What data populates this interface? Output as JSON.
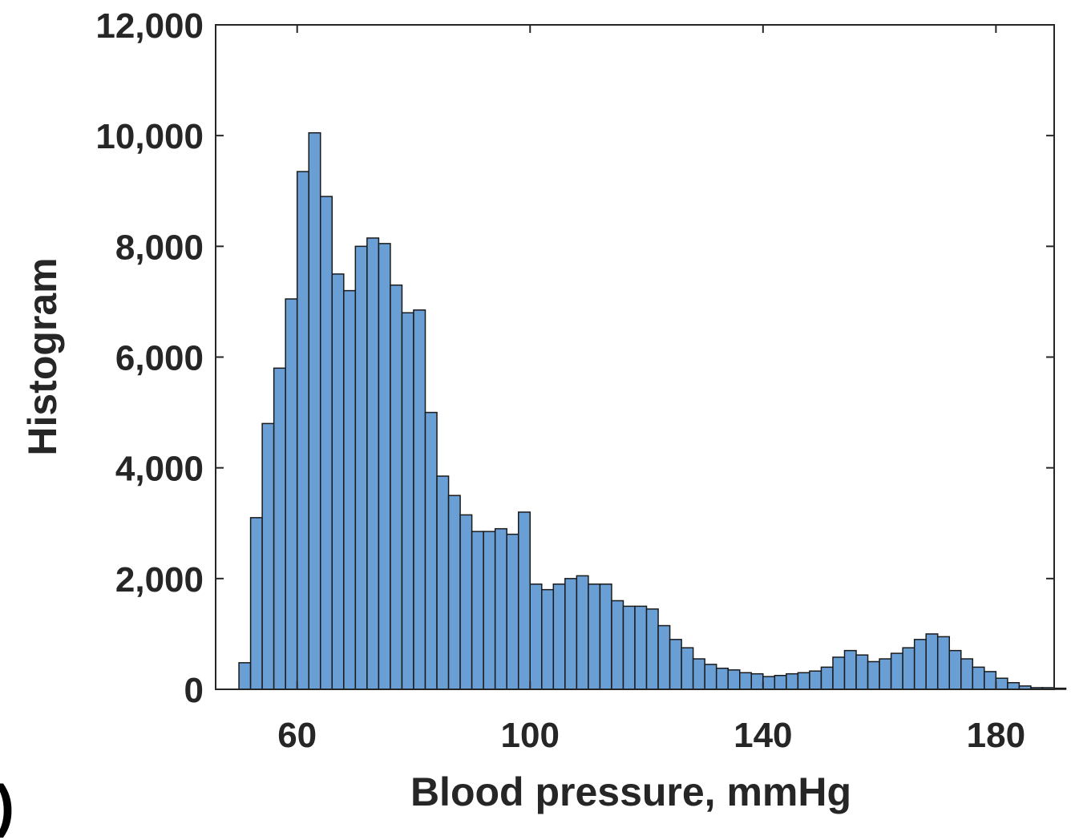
{
  "chart_data": {
    "type": "bar",
    "xlabel": "Blood pressure, mmHg",
    "ylabel": "Histogram",
    "xlim": [
      46,
      190
    ],
    "ylim": [
      0,
      12000
    ],
    "x_ticks": [
      60,
      100,
      140,
      180
    ],
    "x_tick_labels": [
      "60",
      "100",
      "140",
      "180"
    ],
    "y_ticks": [
      0,
      2000,
      4000,
      6000,
      8000,
      10000,
      12000
    ],
    "y_tick_labels": [
      "0",
      "2,000",
      "4,000",
      "6,000",
      "8,000",
      "10,000",
      "12,000"
    ],
    "grid": false,
    "bin_start": 50,
    "bin_width": 2,
    "values": [
      480,
      3100,
      4800,
      5800,
      7050,
      9350,
      10050,
      8900,
      7500,
      7200,
      8000,
      8150,
      8050,
      7300,
      6800,
      6850,
      5000,
      3850,
      3500,
      3150,
      2850,
      2850,
      2900,
      2800,
      3200,
      1900,
      1800,
      1900,
      2000,
      2050,
      1900,
      1900,
      1600,
      1500,
      1500,
      1450,
      1150,
      900,
      750,
      550,
      450,
      380,
      350,
      300,
      280,
      230,
      250,
      280,
      300,
      330,
      400,
      580,
      700,
      620,
      500,
      550,
      650,
      750,
      900,
      1000,
      950,
      700,
      550,
      400,
      320,
      200,
      120,
      60,
      30,
      30,
      20
    ],
    "bar_color": "#6a9fd6",
    "edge_color": "#1a1a1a"
  },
  "panel_letter": ")"
}
